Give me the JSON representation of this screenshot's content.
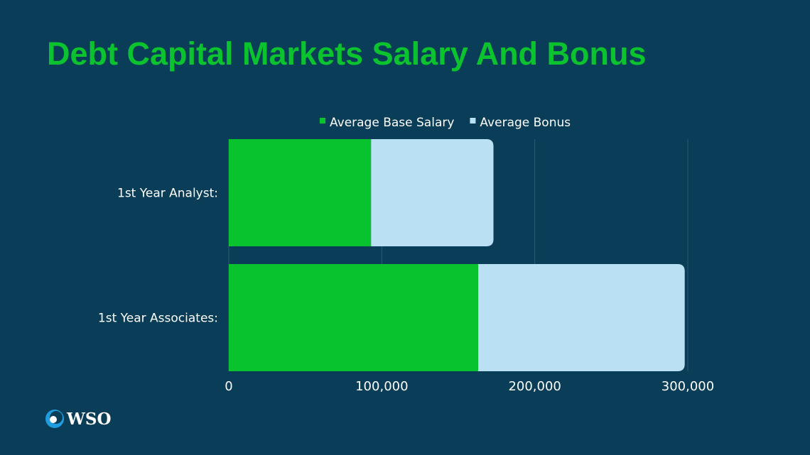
{
  "chart_data": {
    "type": "bar",
    "orientation": "horizontal",
    "stacked": true,
    "title": "Debt Capital Markets Salary And Bonus",
    "categories": [
      "1st Year Analyst:",
      "1st Year Associates:"
    ],
    "series": [
      {
        "name": "Average Base Salary",
        "values": [
          93000,
          163000
        ],
        "color": "#08c22e"
      },
      {
        "name": "Average Bonus",
        "values": [
          80000,
          135000
        ],
        "color": "#b9e1f3"
      }
    ],
    "xlim": [
      0,
      300000
    ],
    "xticks": [
      "0",
      "100,000",
      "200,000",
      "300,000"
    ],
    "grid": true,
    "legend": "top"
  },
  "colors": {
    "background": "#0a3d58",
    "title": "#0bc22f"
  },
  "logo": {
    "text": "WSO"
  }
}
